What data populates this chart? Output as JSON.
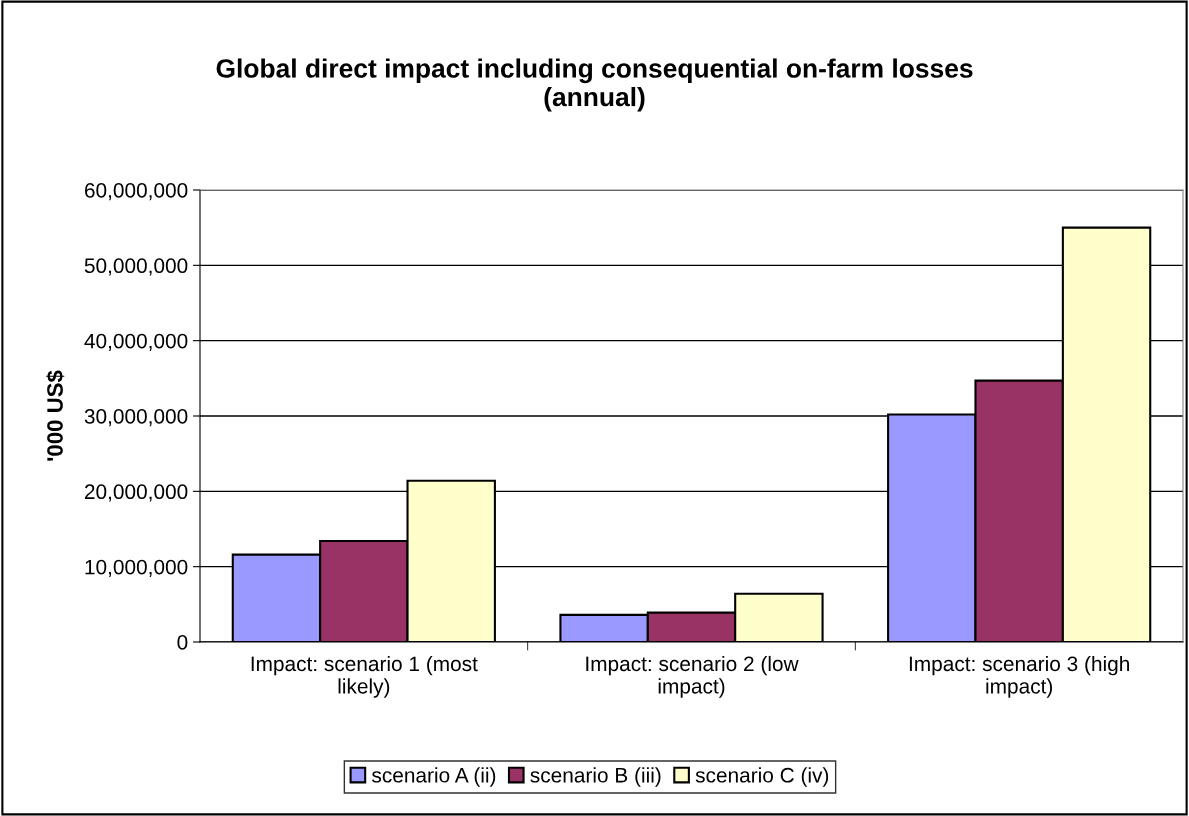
{
  "chart_data": {
    "type": "bar",
    "title": "Global direct impact including consequential on-farm losses\n(annual)",
    "ylabel": "'000 US$",
    "categories": [
      "Impact: scenario 1 (most\nlikely)",
      "Impact: scenario 2 (low\nimpact)",
      "Impact: scenario 3 (high\nimpact)"
    ],
    "series": [
      {
        "name": "scenario A (ii)",
        "color": "#9999ff",
        "values": [
          11600000,
          3600000,
          30200000
        ]
      },
      {
        "name": "scenario B (iii)",
        "color": "#993366",
        "values": [
          13400000,
          3900000,
          34700000
        ]
      },
      {
        "name": "scenario C (iv)",
        "color": "#ffffcc",
        "values": [
          21400000,
          6400000,
          55000000
        ]
      }
    ],
    "ylim": [
      0,
      60000000
    ],
    "yticks": [
      {
        "value": 0,
        "label": "0"
      },
      {
        "value": 10000000,
        "label": "10,000,000"
      },
      {
        "value": 20000000,
        "label": "20,000,000"
      },
      {
        "value": 30000000,
        "label": "30,000,000"
      },
      {
        "value": 40000000,
        "label": "40,000,000"
      },
      {
        "value": 50000000,
        "label": "50,000,000"
      },
      {
        "value": 60000000,
        "label": "60,000,000"
      }
    ],
    "grid": "y",
    "legend": "bottom"
  }
}
